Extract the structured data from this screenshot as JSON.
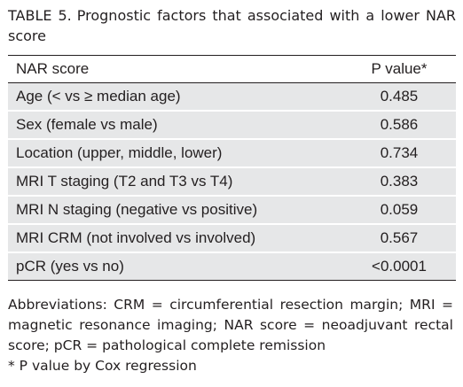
{
  "title": {
    "label": "TABLE 5.",
    "text": "Prognostic factors that associated with a lower NAR score"
  },
  "table": {
    "columns": [
      "NAR score",
      "P value*"
    ],
    "rows": [
      [
        "Age (< vs ≥ median age)",
        "0.485"
      ],
      [
        "Sex (female vs male)",
        "0.586"
      ],
      [
        "Location (upper, middle, lower)",
        "0.734"
      ],
      [
        "MRI T staging (T2 and T3 vs T4)",
        "0.383"
      ],
      [
        "MRI N staging (negative vs positive)",
        "0.059"
      ],
      [
        "MRI CRM (not involved vs involved)",
        "0.567"
      ],
      [
        "pCR (yes vs no)",
        "<0.0001"
      ]
    ]
  },
  "footnotes": {
    "abbreviations": "Abbreviations: CRM = circumferential resection margin; MRI = magnetic resonance imaging; NAR score = neoadjuvant rectal score; pCR = pathological complete remission",
    "asterisk": "*  P value by Cox regression"
  }
}
